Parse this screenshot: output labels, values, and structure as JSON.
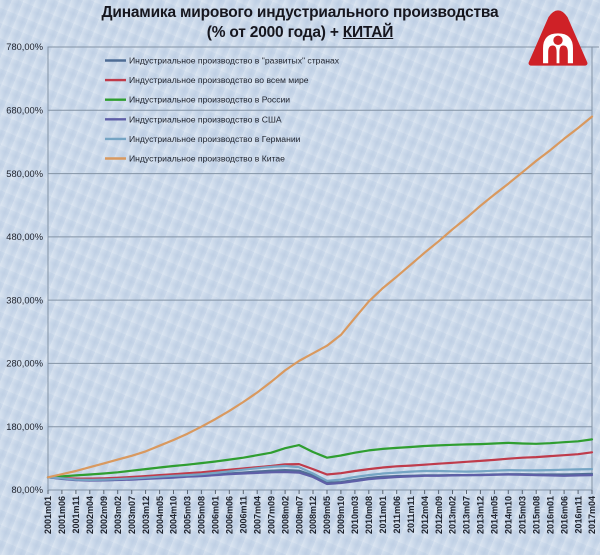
{
  "page": {
    "background": "#ccdaeb"
  },
  "title": {
    "line1": "Динамика мирового индустриального производства",
    "line2_prefix": "(% от 2000 года) + ",
    "line2_underlined": "КИТАЙ"
  },
  "logo": {
    "name": "АфтерШок",
    "color": "#cf2127"
  },
  "chart_data": {
    "type": "line",
    "title": "Динамика мирового индустриального производства (% от 2000 года) + КИТАЙ",
    "xlabel": "",
    "ylabel": "",
    "ylim": [
      80,
      780
    ],
    "grid": "horizontal",
    "legend_position": "inside-top-left",
    "yticks": [
      "780,00%",
      "680,00%",
      "580,00%",
      "480,00%",
      "380,00%",
      "280,00%",
      "180,00%",
      "80,00%"
    ],
    "colors": {
      "grid": "#8494a6",
      "axis_text": "#20242e"
    },
    "categories": [
      "2001m01",
      "2001m06",
      "2001m11",
      "2002m04",
      "2002m09",
      "2003m02",
      "2003m07",
      "2003m12",
      "2004m05",
      "2004m10",
      "2005m03",
      "2005m08",
      "2006m01",
      "2006m06",
      "2006m11",
      "2007m04",
      "2007m09",
      "2008m02",
      "2008m07",
      "2008m12",
      "2009m05",
      "2009m10",
      "2010m03",
      "2010m08",
      "2011m01",
      "2011m06",
      "2011m11",
      "2012m04",
      "2012m09",
      "2013m02",
      "2013m07",
      "2013m12",
      "2014m05",
      "2014m10",
      "2015m03",
      "2015m08",
      "2016m01",
      "2016m06",
      "2016m11",
      "2017m04"
    ],
    "series": [
      {
        "id": "developed",
        "name": "Индустриальное производство в \"развитых\" странах",
        "color": "#4f6d95",
        "values": [
          100,
          98,
          96.5,
          96,
          96.2,
          96.8,
          97.5,
          98.5,
          99.5,
          100.5,
          102,
          103,
          104.5,
          106,
          107.5,
          109,
          110.5,
          111.5,
          110.5,
          103,
          91.5,
          92.5,
          96,
          99,
          101,
          102,
          102.5,
          103,
          103,
          103.5,
          103.5,
          104,
          104.5,
          105,
          105,
          104.5,
          104.5,
          104.5,
          105,
          105.5
        ]
      },
      {
        "id": "world",
        "name": "Индустриальное производство во всем мире",
        "color": "#bf3b4b",
        "values": [
          100,
          99,
          98,
          98,
          98.5,
          99.5,
          100.5,
          102,
          103.5,
          105,
          106.5,
          108,
          110,
          112,
          114,
          116,
          118,
          120.5,
          121,
          113,
          104.5,
          106.5,
          110,
          113,
          115.5,
          117.5,
          118.5,
          120,
          121.5,
          123,
          124.5,
          126,
          127.5,
          129.5,
          131,
          132,
          133.5,
          135,
          136.5,
          139.5
        ]
      },
      {
        "id": "russia",
        "name": "Индустриальное производство в России",
        "color": "#2f9e30",
        "values": [
          100,
          101.5,
          103,
          104.5,
          106,
          108,
          110.5,
          113,
          115.5,
          118,
          120,
          122.5,
          125,
          128,
          131,
          135,
          139,
          146,
          151,
          140,
          131,
          134.5,
          139,
          142.5,
          145,
          146.5,
          148,
          149.5,
          150.5,
          151.5,
          152,
          152.5,
          153.5,
          154.5,
          153.5,
          153,
          154,
          155.5,
          157,
          160
        ]
      },
      {
        "id": "usa",
        "name": "Индустриальное производство в США",
        "color": "#5f5fa7",
        "values": [
          100,
          97.5,
          95.5,
          95,
          95.2,
          95.8,
          96.5,
          97.5,
          98.5,
          99.5,
          101,
          102,
          103.5,
          105,
          106,
          107,
          108,
          108.5,
          107.5,
          100.5,
          89.5,
          91,
          94,
          97,
          99,
          100.5,
          101.5,
          102.5,
          102.5,
          103,
          103.5,
          103.5,
          104,
          104.5,
          104,
          103.5,
          103,
          102.5,
          103,
          103.5
        ]
      },
      {
        "id": "germany",
        "name": "Индустриальное производство в Германии",
        "color": "#76a5c4",
        "values": [
          100,
          98.5,
          96.5,
          96,
          96.5,
          97.2,
          98.2,
          99.5,
          101,
          102.5,
          103.5,
          105,
          107,
          109.5,
          112,
          114.5,
          116.5,
          118,
          116,
          106,
          94.5,
          96.5,
          100.5,
          103.5,
          106,
          107.5,
          109,
          110,
          110,
          109.5,
          109,
          109.5,
          110.5,
          111.5,
          111,
          111,
          111.5,
          112,
          112.5,
          113
        ]
      },
      {
        "id": "china",
        "name": "Индустриальное производство в Китае",
        "color": "#d9995f",
        "values": [
          100,
          105,
          110,
          116,
          122,
          128,
          134,
          141,
          150,
          159,
          169,
          180,
          192,
          205,
          219,
          234,
          251,
          269,
          284,
          296,
          308,
          325,
          352,
          378,
          399,
          417,
          436,
          455,
          473,
          492,
          510,
          529,
          547,
          564,
          582,
          600,
          617,
          635,
          652,
          670
        ]
      }
    ]
  }
}
